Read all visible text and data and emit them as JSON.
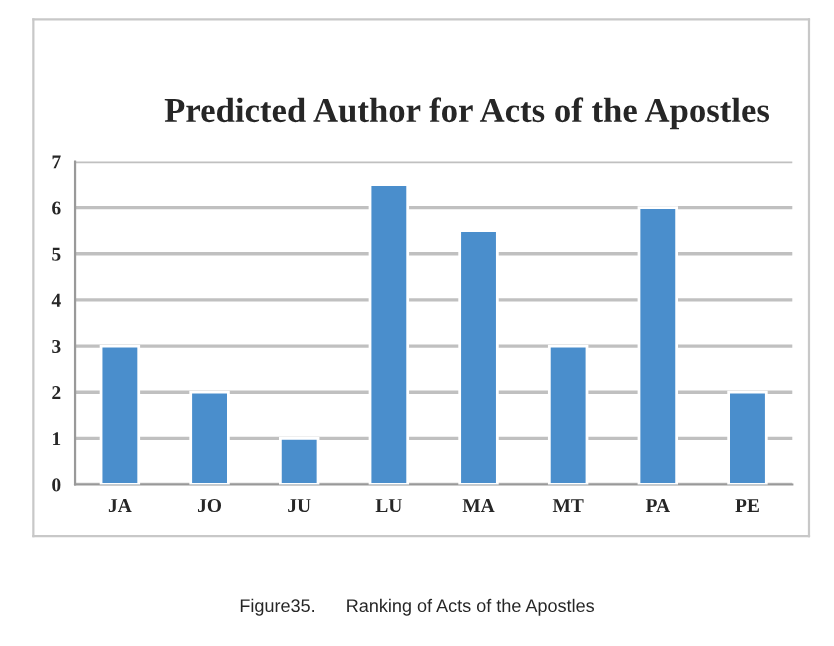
{
  "chart_data": {
    "type": "bar",
    "title": "Predicted Author for Acts of the Apostles",
    "categories": [
      "JA",
      "JO",
      "JU",
      "LU",
      "MA",
      "MT",
      "PA",
      "PE"
    ],
    "values": [
      3,
      2,
      1,
      6.5,
      5.5,
      3,
      6,
      2
    ],
    "color": "#4a8ecc",
    "ylim": [
      0,
      7
    ],
    "yticks": [
      0,
      1,
      2,
      3,
      4,
      5,
      6,
      7
    ],
    "grid": "y",
    "annotations": [
      "Figure35.      Ranking of Acts of the Apostles"
    ]
  }
}
